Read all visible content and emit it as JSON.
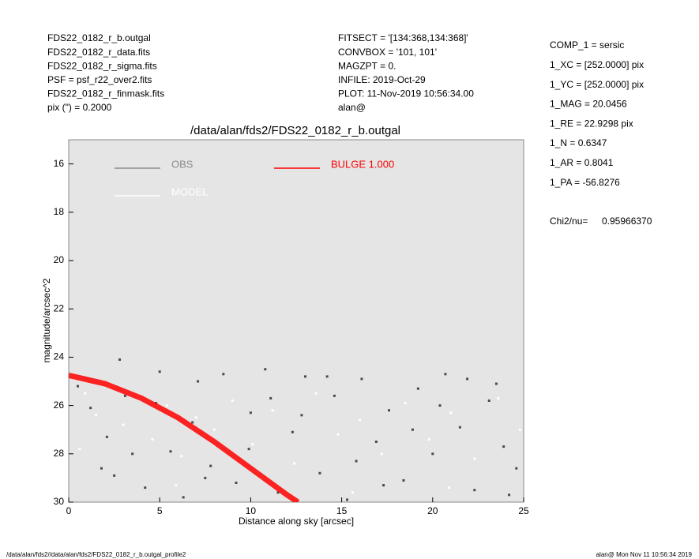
{
  "chart_data": {
    "type": "scatter",
    "title": "/data/alan/fds2/FDS22_0182_r_b.outgal",
    "xlabel": "Distance along sky [arcsec]",
    "ylabel": "magnitude/arcsec^2",
    "header_left": [
      "FDS22_0182_r_b.outgal",
      "FDS22_0182_r_data.fits",
      "FDS22_0182_r_sigma.fits",
      "PSF     = psf_r22_over2.fits",
      "FDS22_0182_r_finmask.fits",
      "pix (\") =  0.2000"
    ],
    "header_middle": [
      "FITSECT = '[134:368,134:368]'",
      "CONVBOX = '101, 101'",
      "MAGZPT  =                  0.",
      "INFILE: 2019-Oct-29",
      "PLOT: 11-Nov-2019 10:56:34.00",
      "alan@"
    ],
    "params": [
      "COMP_1  = sersic",
      "1_XC    = [252.0000] pix",
      "1_YC    = [252.0000] pix",
      "1_MAG    = 20.0456",
      "1_RE    = 22.9298 pix",
      "1_N     = 0.6347",
      "1_AR    = 0.8041",
      "1_PA    = -56.8276"
    ],
    "chi2_label": "Chi2/nu=",
    "chi2_value": "0.95966370",
    "footer_left": "/data/alan/fds2//data/alan/fds2/FDS22_0182_r_b.outgal_profile2",
    "footer_right": "alan@  Mon Nov 11 10:56:34 2019",
    "xlim": [
      0,
      25
    ],
    "xticks": [
      0,
      5,
      10,
      15,
      20,
      25
    ],
    "ylim": [
      30,
      15
    ],
    "yticks": [
      16,
      18,
      20,
      22,
      24,
      26,
      28,
      30
    ],
    "background": "#e5e5e5",
    "series": [
      {
        "name": "OBS",
        "color": "#8c8c8c",
        "point_color": "#4a4a4a",
        "kind": "points",
        "x": [
          0.5,
          1.2,
          2.1,
          2.8,
          3.5,
          4.2,
          5.0,
          5.6,
          6.3,
          7.1,
          7.8,
          8.5,
          9.2,
          10.0,
          10.8,
          11.5,
          12.3,
          13.0,
          13.8,
          14.6,
          15.3,
          16.1,
          16.9,
          17.6,
          18.4,
          19.2,
          20.0,
          20.7,
          21.5,
          22.3,
          23.1,
          23.9,
          24.6,
          1.8,
          4.8,
          7.5,
          9.9,
          12.8,
          15.8,
          18.9,
          21.9,
          24.2,
          3.1,
          6.8,
          11.1,
          14.2,
          17.3,
          20.4,
          23.5,
          2.5
        ],
        "values": [
          25.2,
          26.1,
          27.3,
          24.1,
          28.0,
          29.4,
          24.6,
          27.9,
          29.8,
          25.0,
          28.5,
          24.7,
          29.2,
          26.3,
          24.5,
          29.6,
          27.1,
          24.8,
          28.8,
          25.6,
          29.9,
          24.9,
          27.5,
          26.2,
          29.1,
          25.3,
          28.0,
          24.7,
          26.9,
          29.5,
          25.8,
          27.7,
          28.6,
          28.6,
          25.9,
          29.0,
          27.8,
          26.4,
          28.3,
          27.0,
          24.9,
          29.7,
          25.6,
          26.7,
          25.7,
          24.8,
          29.3,
          26.0,
          25.1,
          28.9
        ]
      },
      {
        "name": "MODEL",
        "color": "#ffffff",
        "point_color": "#ffffff",
        "kind": "points",
        "x": [
          0.3,
          0.9,
          1.5,
          2.2,
          3.0,
          3.8,
          4.6,
          5.4,
          6.2,
          7.0,
          8.0,
          9.0,
          10.1,
          11.2,
          12.4,
          13.6,
          14.8,
          16.0,
          17.2,
          18.5,
          19.8,
          21.0,
          22.3,
          23.6,
          24.8,
          0.6,
          5.9,
          10.6,
          15.6,
          20.9
        ],
        "values": [
          24.9,
          25.5,
          26.4,
          25.2,
          26.8,
          25.6,
          27.4,
          26.0,
          28.1,
          26.5,
          27.0,
          25.8,
          27.6,
          26.2,
          28.4,
          25.5,
          27.2,
          26.6,
          28.0,
          25.9,
          27.4,
          26.3,
          28.2,
          25.7,
          27.0,
          27.8,
          29.3,
          29.0,
          29.6,
          29.4
        ]
      },
      {
        "name": "BULGE  1.000",
        "color": "#ff0000",
        "kind": "line",
        "x": [
          0,
          2,
          4,
          6,
          8,
          10,
          12,
          12.6
        ],
        "values": [
          24.75,
          25.1,
          25.7,
          26.5,
          27.5,
          28.6,
          29.7,
          30
        ]
      }
    ]
  }
}
